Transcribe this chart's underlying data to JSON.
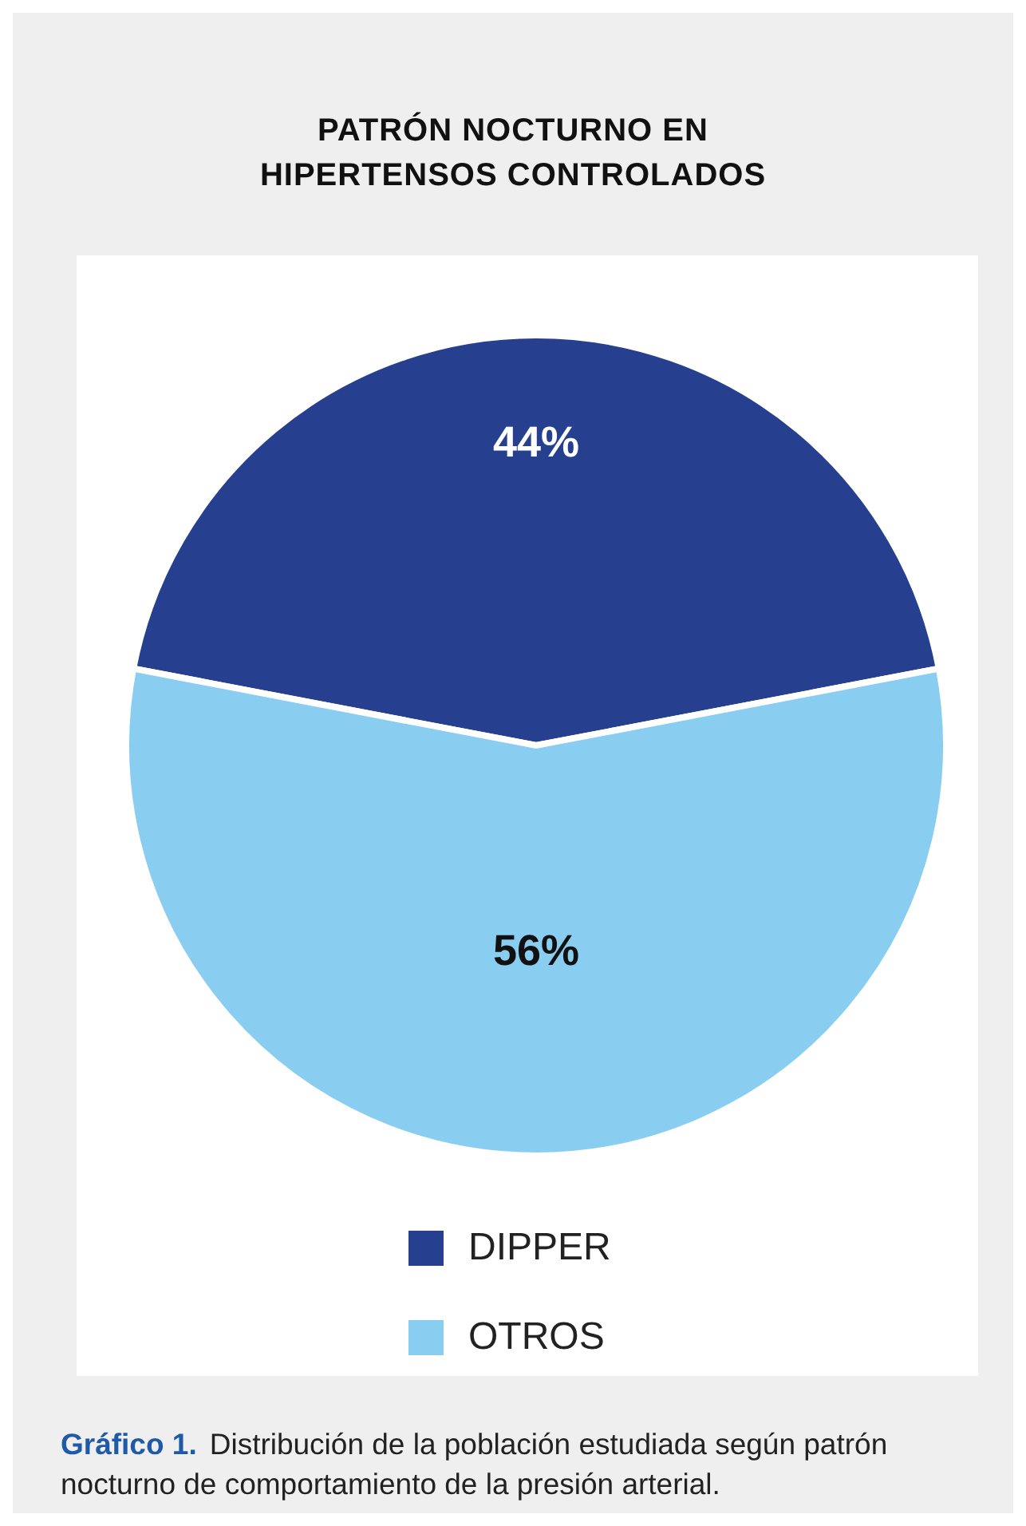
{
  "chart_data": {
    "type": "pie",
    "title": "PATRÓN NOCTURNO EN\nHIPERTENSOS CONTROLADOS",
    "categories": [
      "DIPPER",
      "OTROS"
    ],
    "values": [
      44,
      56
    ],
    "value_labels": [
      "44%",
      "56%"
    ],
    "colors": [
      "#26408f",
      "#89cdf1"
    ],
    "legend": "bottom",
    "annotations": [
      "Gráfico 1.",
      "Distribución de la población estudiada según patrón nocturno de comportamiento de la presión arterial."
    ]
  }
}
